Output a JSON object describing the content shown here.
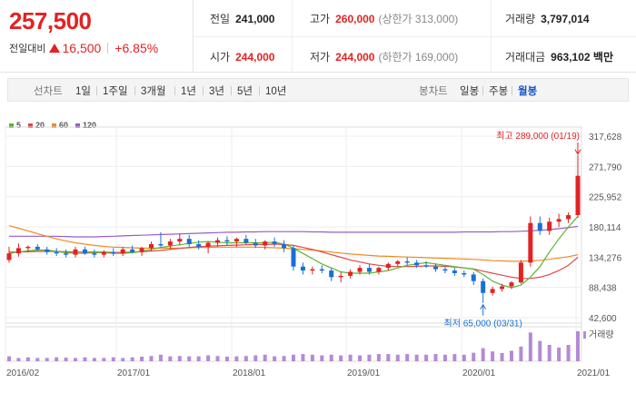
{
  "quote": {
    "price": "257,500",
    "change_label": "전일대비",
    "change_value": "16,500",
    "change_pct": "+6.85%"
  },
  "stats": {
    "prev_close": {
      "label": "전일",
      "value": "241,000"
    },
    "high": {
      "label": "고가",
      "value": "260,000",
      "sub": "(상한가 313,000)"
    },
    "volume": {
      "label": "거래량",
      "value": "3,797,014"
    },
    "open": {
      "label": "시가",
      "value": "244,000"
    },
    "low": {
      "label": "저가",
      "value": "244,000",
      "sub": "(하한가 169,000)"
    },
    "amount": {
      "label": "거래대금",
      "value": "963,102",
      "unit": "백만"
    }
  },
  "toolbar": {
    "line_label": "선차트",
    "line_periods": [
      "1일",
      "1주일",
      "3개월",
      "1년",
      "3년",
      "5년",
      "10년"
    ],
    "candle_label": "봉차트",
    "candle_periods": [
      "일봉",
      "주봉",
      "월봉"
    ],
    "active_candle": "월봉"
  },
  "colors": {
    "up": "#e12323",
    "down": "#1a6fd6",
    "ma5": "#5cb531",
    "ma20": "#e04848",
    "ma60": "#f08a24",
    "ma120": "#9a5cc6",
    "volume": "#b48ad6"
  },
  "chart_data": {
    "type": "candlestick",
    "legend": [
      {
        "name": "5",
        "color": "#5cb531"
      },
      {
        "name": "20",
        "color": "#e04848"
      },
      {
        "name": "60",
        "color": "#f08a24"
      },
      {
        "name": "120",
        "color": "#9a5cc6"
      }
    ],
    "y_ticks": [
      "317,628",
      "271,790",
      "225,952",
      "180,114",
      "134,276",
      "88,438",
      "42,600"
    ],
    "ylim": [
      42600,
      317628
    ],
    "x_ticks": [
      "2016/02",
      "2017/01",
      "2018/01",
      "2019/01",
      "2020/01",
      "2021/01"
    ],
    "annotations": {
      "max": "최고 289,000 (01/19)",
      "min": "최저 65,000 (03/31)"
    },
    "volume_label": "거래량",
    "candles": [
      [
        130000,
        150000,
        126000,
        140000
      ],
      [
        140000,
        155000,
        135000,
        148000
      ],
      [
        148000,
        152000,
        142000,
        150000
      ],
      [
        150000,
        154000,
        144000,
        146000
      ],
      [
        146000,
        150000,
        138000,
        142000
      ],
      [
        142000,
        148000,
        136000,
        140000
      ],
      [
        140000,
        146000,
        134000,
        138000
      ],
      [
        138000,
        150000,
        134000,
        146000
      ],
      [
        146000,
        150000,
        138000,
        140000
      ],
      [
        140000,
        146000,
        134000,
        138000
      ],
      [
        138000,
        145000,
        134000,
        142000
      ],
      [
        142000,
        148000,
        136000,
        140000
      ],
      [
        140000,
        150000,
        136000,
        146000
      ],
      [
        146000,
        152000,
        140000,
        142000
      ],
      [
        142000,
        150000,
        136000,
        148000
      ],
      [
        148000,
        158000,
        144000,
        154000
      ],
      [
        154000,
        172000,
        150000,
        152000
      ],
      [
        152000,
        162000,
        146000,
        158000
      ],
      [
        158000,
        170000,
        152000,
        162000
      ],
      [
        162000,
        168000,
        150000,
        154000
      ],
      [
        154000,
        160000,
        146000,
        150000
      ],
      [
        150000,
        158000,
        140000,
        156000
      ],
      [
        156000,
        164000,
        150000,
        160000
      ],
      [
        160000,
        166000,
        152000,
        158000
      ],
      [
        158000,
        164000,
        150000,
        162000
      ],
      [
        162000,
        168000,
        154000,
        156000
      ],
      [
        156000,
        162000,
        148000,
        152000
      ],
      [
        152000,
        160000,
        146000,
        158000
      ],
      [
        158000,
        164000,
        150000,
        154000
      ],
      [
        154000,
        160000,
        142000,
        148000
      ],
      [
        148000,
        152000,
        114000,
        120000
      ],
      [
        120000,
        126000,
        108000,
        114000
      ],
      [
        114000,
        120000,
        108000,
        116000
      ],
      [
        116000,
        122000,
        110000,
        114000
      ],
      [
        114000,
        118000,
        98000,
        104000
      ],
      [
        104000,
        112000,
        96000,
        106000
      ],
      [
        106000,
        116000,
        102000,
        112000
      ],
      [
        112000,
        122000,
        108000,
        118000
      ],
      [
        118000,
        124000,
        108000,
        112000
      ],
      [
        112000,
        120000,
        108000,
        118000
      ],
      [
        118000,
        126000,
        114000,
        124000
      ],
      [
        124000,
        130000,
        120000,
        128000
      ],
      [
        128000,
        134000,
        122000,
        126000
      ],
      [
        126000,
        130000,
        118000,
        122000
      ],
      [
        122000,
        128000,
        118000,
        120000
      ],
      [
        120000,
        124000,
        112000,
        116000
      ],
      [
        116000,
        120000,
        110000,
        114000
      ],
      [
        114000,
        118000,
        106000,
        110000
      ],
      [
        110000,
        114000,
        104000,
        108000
      ],
      [
        108000,
        112000,
        92000,
        98000
      ],
      [
        98000,
        102000,
        65000,
        80000
      ],
      [
        80000,
        90000,
        76000,
        86000
      ],
      [
        86000,
        94000,
        82000,
        90000
      ],
      [
        90000,
        98000,
        86000,
        96000
      ],
      [
        96000,
        130000,
        94000,
        126000
      ],
      [
        126000,
        196000,
        120000,
        186000
      ],
      [
        186000,
        196000,
        168000,
        174000
      ],
      [
        174000,
        194000,
        168000,
        188000
      ],
      [
        188000,
        200000,
        180000,
        192000
      ],
      [
        192000,
        202000,
        186000,
        198000
      ],
      [
        198000,
        289000,
        194000,
        257500
      ]
    ],
    "ma5": [
      140000,
      142000,
      144000,
      145000,
      145000,
      143000,
      141000,
      140000,
      140000,
      141000,
      141000,
      140000,
      140000,
      141000,
      143000,
      146000,
      149000,
      151000,
      153000,
      155000,
      157000,
      158000,
      157000,
      156000,
      156000,
      156000,
      156000,
      156000,
      157000,
      154000,
      148000,
      140000,
      132000,
      124000,
      118000,
      112000,
      110000,
      110000,
      110000,
      112000,
      114000,
      118000,
      122000,
      124000,
      126000,
      124000,
      122000,
      120000,
      118000,
      116000,
      108000,
      98000,
      92000,
      88000,
      92000,
      104000,
      120000,
      142000,
      162000,
      180000,
      196000
    ],
    "ma20": [
      142000,
      142000,
      142500,
      143000,
      143000,
      143000,
      142500,
      142000,
      142000,
      142000,
      142000,
      141500,
      141500,
      142000,
      142500,
      143500,
      144500,
      146000,
      147500,
      149000,
      150000,
      151000,
      151500,
      152000,
      152500,
      153000,
      153500,
      153500,
      154000,
      153500,
      152000,
      149000,
      146000,
      142000,
      138000,
      134000,
      130000,
      127000,
      124000,
      122000,
      120500,
      120000,
      120000,
      120500,
      121000,
      121000,
      120500,
      119500,
      118000,
      116500,
      113000,
      110000,
      107000,
      104000,
      102000,
      102000,
      104000,
      108000,
      114000,
      122000,
      134000
    ],
    "ma60": [
      182000,
      178000,
      174000,
      170000,
      166000,
      162000,
      159000,
      156000,
      154000,
      152000,
      150500,
      149500,
      149000,
      148500,
      148000,
      148000,
      148000,
      148000,
      148000,
      148500,
      149000,
      149000,
      149500,
      149500,
      149500,
      149500,
      149500,
      149000,
      148500,
      148000,
      147000,
      146000,
      145000,
      143500,
      142000,
      140500,
      139000,
      138000,
      137000,
      136000,
      135500,
      135000,
      134500,
      134000,
      133500,
      133000,
      132500,
      132000,
      131500,
      131000,
      130000,
      129000,
      128500,
      128000,
      128000,
      128500,
      129500,
      131000,
      133000,
      135000,
      138000
    ],
    "ma120": [
      166000,
      166000,
      166000,
      166000,
      166000,
      166000,
      165500,
      165000,
      165000,
      165000,
      165500,
      166000,
      166500,
      167000,
      167500,
      168000,
      168500,
      169000,
      169500,
      170000,
      170500,
      171000,
      171500,
      172000,
      172000,
      172500,
      172500,
      173000,
      173000,
      173000,
      173000,
      173000,
      172500,
      172500,
      172000,
      172000,
      172000,
      172000,
      172000,
      172000,
      172000,
      172000,
      172000,
      172000,
      172000,
      172000,
      172000,
      172000,
      172500,
      172500,
      172500,
      172500,
      173000,
      173000,
      173500,
      174000,
      175000,
      176000,
      177500,
      179000,
      181000
    ],
    "volume": [
      0.15,
      0.1,
      0.12,
      0.1,
      0.1,
      0.12,
      0.11,
      0.1,
      0.12,
      0.1,
      0.1,
      0.12,
      0.1,
      0.12,
      0.14,
      0.16,
      0.2,
      0.15,
      0.16,
      0.15,
      0.15,
      0.18,
      0.16,
      0.14,
      0.15,
      0.16,
      0.18,
      0.2,
      0.15,
      0.16,
      0.2,
      0.22,
      0.2,
      0.18,
      0.2,
      0.18,
      0.2,
      0.18,
      0.2,
      0.22,
      0.22,
      0.2,
      0.22,
      0.2,
      0.2,
      0.22,
      0.2,
      0.22,
      0.2,
      0.26,
      0.4,
      0.3,
      0.25,
      0.32,
      0.45,
      0.88,
      0.62,
      0.5,
      0.42,
      0.5,
      0.92
    ]
  }
}
